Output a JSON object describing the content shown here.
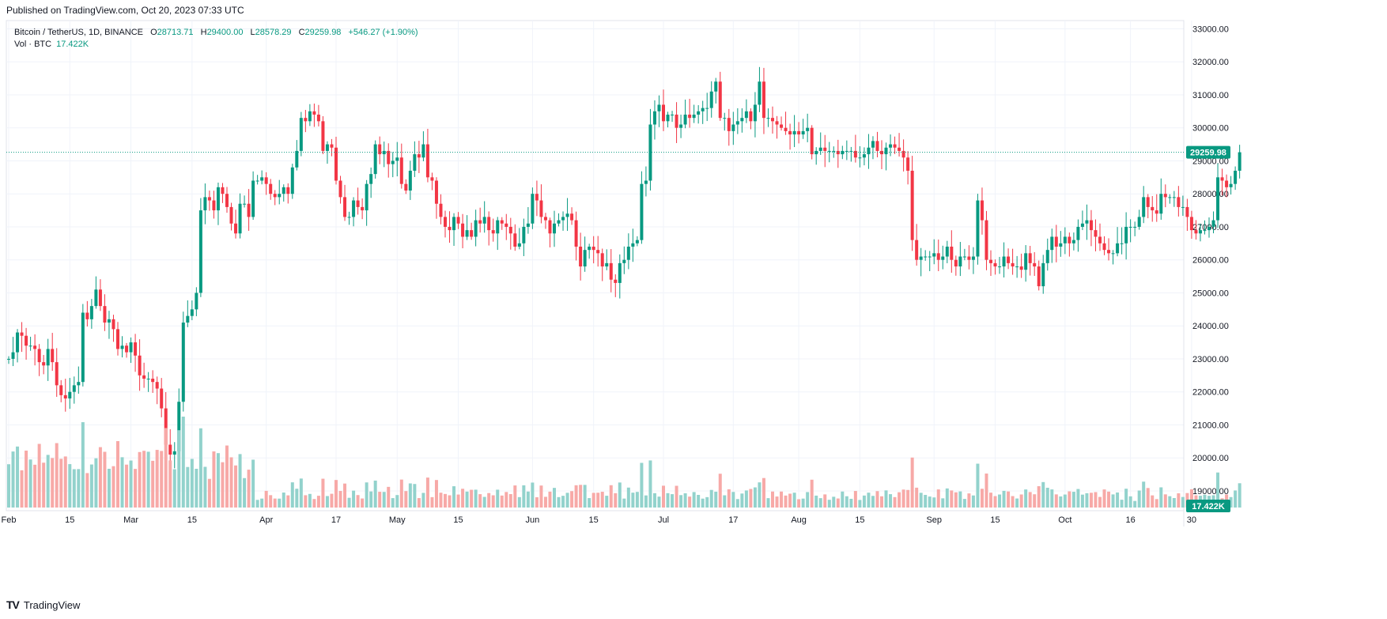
{
  "header": {
    "published": "Published on TradingView.com, Oct 20, 2023 07:33 UTC"
  },
  "legend": {
    "symbol": "Bitcoin / TetherUS, 1D, BINANCE",
    "open_label": "O",
    "open": "28713.71",
    "high_label": "H",
    "high": "29400.00",
    "low_label": "L",
    "low": "28578.29",
    "close_label": "C",
    "close": "29259.98",
    "change": "+546.27 (+1.90%)",
    "vol_label": "Vol · BTC",
    "vol_value": "17.422K"
  },
  "footer": {
    "brand": "TradingView",
    "logo_glyph": "TV"
  },
  "colors": {
    "up": "#089981",
    "down": "#f23645",
    "vol_up": "#92d2cc",
    "vol_down": "#f7a9a7",
    "grid": "#f0f3fa",
    "axis_text": "#131722"
  },
  "chart_data": {
    "type": "candlestick",
    "title": "Bitcoin / TetherUS, 1D, BINANCE",
    "y_ticks": [
      "19000.00",
      "20000.00",
      "21000.00",
      "22000.00",
      "23000.00",
      "24000.00",
      "25000.00",
      "26000.00",
      "27000.00",
      "28000.00",
      "29000.00",
      "30000.00",
      "31000.00",
      "32000.00",
      "33000.00"
    ],
    "ylim": [
      18400,
      33250
    ],
    "x_ticks": [
      {
        "label": "Feb",
        "day": 0
      },
      {
        "label": "15",
        "day": 14
      },
      {
        "label": "Mar",
        "day": 28
      },
      {
        "label": "15",
        "day": 42
      },
      {
        "label": "Apr",
        "day": 59
      },
      {
        "label": "17",
        "day": 75
      },
      {
        "label": "May",
        "day": 89
      },
      {
        "label": "15",
        "day": 103
      },
      {
        "label": "Jun",
        "day": 120
      },
      {
        "label": "15",
        "day": 134
      },
      {
        "label": "Jul",
        "day": 150
      },
      {
        "label": "17",
        "day": 166
      },
      {
        "label": "Aug",
        "day": 181
      },
      {
        "label": "15",
        "day": 195
      },
      {
        "label": "Sep",
        "day": 212
      },
      {
        "label": "15",
        "day": 226
      },
      {
        "label": "Oct",
        "day": 242
      },
      {
        "label": "16",
        "day": 257
      },
      {
        "label": "30",
        "day": 271
      }
    ],
    "current_price": 29259.98,
    "current_price_label": "29259.98",
    "current_volume_label": "17.422K",
    "grid": true,
    "candles_start": "2023-01-28",
    "close": [
      23000,
      23200,
      23800,
      23700,
      23400,
      23400,
      23300,
      22900,
      22800,
      23300,
      22900,
      22200,
      21900,
      21800,
      22000,
      22200,
      22300,
      24400,
      24200,
      24600,
      25100,
      24600,
      24100,
      24200,
      23900,
      23300,
      23400,
      23200,
      23500,
      23100,
      22500,
      22400,
      22400,
      22300,
      22100,
      21500,
      20400,
      20100,
      20200,
      21700,
      24100,
      24300,
      24500,
      25000,
      27500,
      27900,
      27800,
      27500,
      28200,
      28000,
      27600,
      27100,
      26800,
      27700,
      27700,
      27300,
      28400,
      28400,
      28500,
      28300,
      28000,
      27900,
      28000,
      28200,
      28000,
      28800,
      29300,
      30300,
      30200,
      30500,
      30400,
      30200,
      29300,
      29500,
      29400,
      28400,
      27900,
      27300,
      27300,
      27800,
      27600,
      27500,
      28300,
      28600,
      29500,
      29200,
      29300,
      28900,
      29000,
      29100,
      28300,
      28100,
      28700,
      29200,
      29100,
      29500,
      28500,
      28400,
      27700,
      27300,
      27000,
      26900,
      27300,
      27100,
      26700,
      26900,
      26700,
      27200,
      27100,
      27300,
      26900,
      26800,
      27200,
      27100,
      27000,
      26800,
      26400,
      26500,
      27000,
      27100,
      28000,
      27800,
      27300,
      27200,
      26800,
      27100,
      27200,
      27300,
      27400,
      27200,
      26400,
      25800,
      26300,
      26400,
      26300,
      26200,
      25800,
      25900,
      25400,
      25300,
      25900,
      26000,
      26400,
      26500,
      26600,
      28300,
      28400,
      30100,
      30500,
      30700,
      30200,
      30400,
      30400,
      30000,
      30100,
      30400,
      30300,
      30400,
      30500,
      30600,
      30600,
      31100,
      31400,
      30300,
      30300,
      29900,
      30100,
      30200,
      30300,
      30500,
      30200,
      30700,
      31400,
      30300,
      30300,
      30200,
      30100,
      30000,
      29900,
      29800,
      29900,
      29800,
      29900,
      30000,
      29200,
      29300,
      29400,
      29300,
      29300,
      29300,
      29200,
      29300,
      29300,
      29300,
      29100,
      29100,
      29200,
      29400,
      29600,
      29300,
      29200,
      29400,
      29500,
      29400,
      29300,
      29100,
      28700,
      26600,
      26000,
      26100,
      26100,
      26100,
      26200,
      26000,
      26100,
      26400,
      26000,
      25800,
      26100,
      26100,
      26000,
      26100,
      27800,
      27200,
      26000,
      25900,
      25800,
      25800,
      26100,
      25900,
      25800,
      25800,
      25700,
      26200,
      25900,
      25800,
      25200,
      25900,
      26300,
      26700,
      26400,
      26500,
      26700,
      26500,
      26600,
      27000,
      27100,
      27200,
      26900,
      26700,
      26500,
      26300,
      26200,
      26200,
      26500,
      26500,
      27000,
      27000,
      27000,
      27300,
      27900,
      27600,
      27500,
      27400,
      28000,
      27900,
      27900,
      27900,
      27600,
      27600,
      27300,
      26900,
      26800,
      26900,
      26900,
      27000,
      27200,
      28500,
      28400,
      28200,
      28300,
      28700,
      29260
    ],
    "x_days_with_volume_shown": "same index as close"
  }
}
